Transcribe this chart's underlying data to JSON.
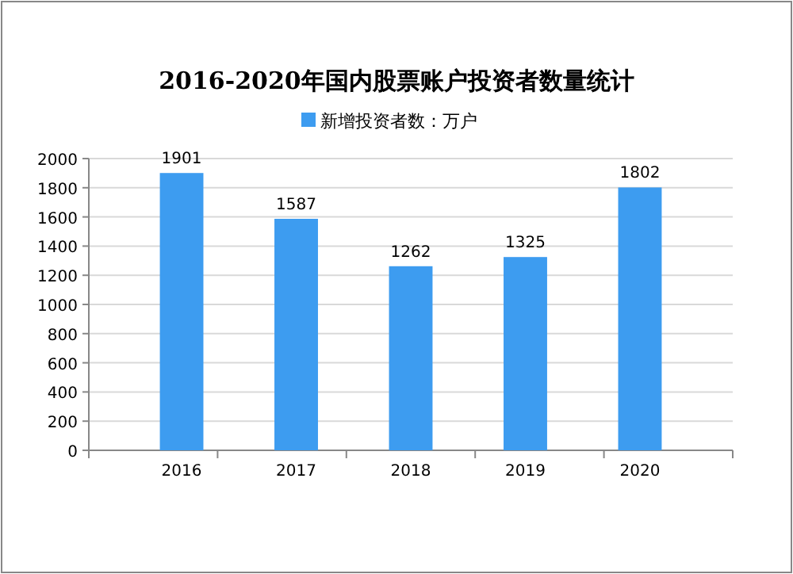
{
  "chart_data": {
    "type": "bar",
    "title": "2016-2020年国内股票账户投资者数量统计",
    "categories": [
      "2016",
      "2017",
      "2018",
      "2019",
      "2020"
    ],
    "series": [
      {
        "name": "新增投资者数：万户",
        "color": "#3d9cf0",
        "values": [
          1901,
          1587,
          1262,
          1325,
          1802
        ]
      }
    ],
    "ylim": [
      0,
      2000
    ],
    "yticks": [
      0,
      200,
      400,
      600,
      800,
      1000,
      1200,
      1400,
      1600,
      1800,
      2000
    ],
    "grid": "y",
    "legend": "top",
    "data_labels": true
  }
}
